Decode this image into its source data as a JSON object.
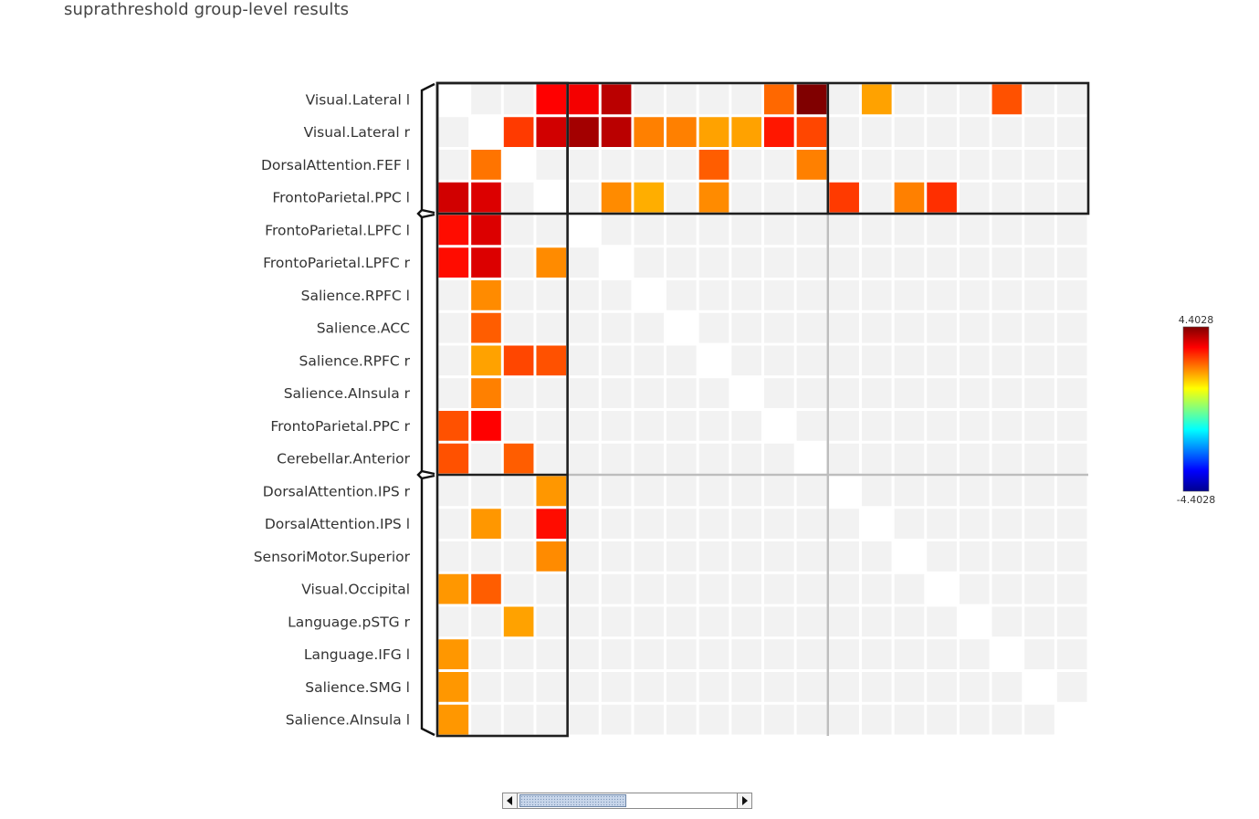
{
  "title": "suprathreshold group-level results",
  "chart_data": {
    "type": "heatmap",
    "title": "suprathreshold group-level results",
    "row_labels": [
      "Visual.Lateral l",
      "Visual.Lateral r",
      "DorsalAttention.FEF l",
      "FrontoParietal.PPC l",
      "FrontoParietal.LPFC l",
      "FrontoParietal.LPFC r",
      "Salience.RPFC l",
      "Salience.ACC",
      "Salience.RPFC r",
      "Salience.AInsula r",
      "FrontoParietal.PPC r",
      "Cerebellar.Anterior",
      "DorsalAttention.IPS r",
      "DorsalAttention.IPS l",
      "SensoriMotor.Superior",
      "Visual.Occipital",
      "Language.pSTG r",
      "Language.IFG l",
      "Salience.SMG l",
      "Salience.AInsula l"
    ],
    "n_columns": 20,
    "n_columns_visible": 20,
    "color_range": [
      -4.4028,
      4.4028
    ],
    "colorbar_max_label": "4.4028",
    "colorbar_min_label": "-4.4028",
    "colormap": "jet",
    "row_clusters": [
      {
        "start": 0,
        "end": 3
      },
      {
        "start": 4,
        "end": 11
      },
      {
        "start": 12,
        "end": 19
      }
    ],
    "column_clusters": [
      {
        "start": 0,
        "end": 3
      },
      {
        "start": 4,
        "end": 11
      },
      {
        "start": 12,
        "end": 19
      }
    ],
    "nonsignificant_color": "#f2f2f2",
    "diagonal_color": "#ffffff",
    "cells": [
      {
        "r": 0,
        "c": 3,
        "v": 3.3
      },
      {
        "r": 0,
        "c": 4,
        "v": 3.4
      },
      {
        "r": 0,
        "c": 5,
        "v": 3.9
      },
      {
        "r": 0,
        "c": 10,
        "v": 2.4
      },
      {
        "r": 0,
        "c": 11,
        "v": 4.4
      },
      {
        "r": 0,
        "c": 13,
        "v": 1.9
      },
      {
        "r": 0,
        "c": 17,
        "v": 2.6
      },
      {
        "r": 1,
        "c": 2,
        "v": 2.8
      },
      {
        "r": 1,
        "c": 3,
        "v": 3.7
      },
      {
        "r": 1,
        "c": 4,
        "v": 4.1
      },
      {
        "r": 1,
        "c": 5,
        "v": 3.9
      },
      {
        "r": 1,
        "c": 6,
        "v": 2.2
      },
      {
        "r": 1,
        "c": 7,
        "v": 2.2
      },
      {
        "r": 1,
        "c": 8,
        "v": 1.9
      },
      {
        "r": 1,
        "c": 9,
        "v": 1.9
      },
      {
        "r": 1,
        "c": 10,
        "v": 3.1
      },
      {
        "r": 1,
        "c": 11,
        "v": 2.7
      },
      {
        "r": 2,
        "c": 1,
        "v": 2.3
      },
      {
        "r": 2,
        "c": 8,
        "v": 2.5
      },
      {
        "r": 2,
        "c": 11,
        "v": 2.2
      },
      {
        "r": 3,
        "c": 0,
        "v": 3.7
      },
      {
        "r": 3,
        "c": 1,
        "v": 3.6
      },
      {
        "r": 3,
        "c": 5,
        "v": 2.1
      },
      {
        "r": 3,
        "c": 6,
        "v": 1.8
      },
      {
        "r": 3,
        "c": 8,
        "v": 2.1
      },
      {
        "r": 3,
        "c": 12,
        "v": 2.8
      },
      {
        "r": 3,
        "c": 14,
        "v": 2.2
      },
      {
        "r": 3,
        "c": 15,
        "v": 2.9
      },
      {
        "r": 4,
        "c": 0,
        "v": 3.2
      },
      {
        "r": 4,
        "c": 1,
        "v": 3.6
      },
      {
        "r": 5,
        "c": 0,
        "v": 3.2
      },
      {
        "r": 5,
        "c": 1,
        "v": 3.6
      },
      {
        "r": 5,
        "c": 3,
        "v": 2.1
      },
      {
        "r": 6,
        "c": 1,
        "v": 2.1
      },
      {
        "r": 7,
        "c": 1,
        "v": 2.5
      },
      {
        "r": 8,
        "c": 1,
        "v": 1.9
      },
      {
        "r": 8,
        "c": 2,
        "v": 2.7
      },
      {
        "r": 8,
        "c": 3,
        "v": 2.6
      },
      {
        "r": 9,
        "c": 1,
        "v": 2.2
      },
      {
        "r": 10,
        "c": 0,
        "v": 2.6
      },
      {
        "r": 10,
        "c": 1,
        "v": 3.3
      },
      {
        "r": 11,
        "c": 0,
        "v": 2.6
      },
      {
        "r": 11,
        "c": 2,
        "v": 2.5
      },
      {
        "r": 12,
        "c": 3,
        "v": 2.0
      },
      {
        "r": 13,
        "c": 1,
        "v": 2.0
      },
      {
        "r": 13,
        "c": 3,
        "v": 3.2
      },
      {
        "r": 14,
        "c": 3,
        "v": 2.1
      },
      {
        "r": 15,
        "c": 0,
        "v": 2.0
      },
      {
        "r": 15,
        "c": 1,
        "v": 2.5
      },
      {
        "r": 16,
        "c": 2,
        "v": 1.9
      },
      {
        "r": 17,
        "c": 0,
        "v": 2.0
      },
      {
        "r": 18,
        "c": 0,
        "v": 2.0
      },
      {
        "r": 19,
        "c": 0,
        "v": 2.0
      }
    ]
  },
  "scrollbar": {
    "position_fraction": 0.0,
    "visible_fraction": 0.48
  },
  "colors": {
    "grid_border": "#1f1f1f",
    "divider": "#bdbdbd",
    "thumb": "#c8d6ea"
  }
}
